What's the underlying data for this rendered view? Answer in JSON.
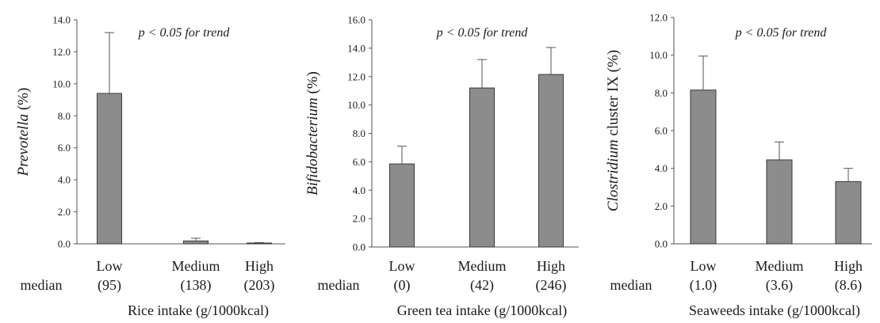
{
  "chart_data": [
    {
      "type": "bar",
      "categories": [
        "Low",
        "Medium",
        "High"
      ],
      "medians": [
        "(95)",
        "(138)",
        "(203)"
      ],
      "median_label": "median",
      "values": [
        9.4,
        0.18,
        0.05
      ],
      "error_upper": [
        13.2,
        0.35,
        0.08
      ],
      "ylabel_italic": "Prevotella",
      "ylabel_rest": " (%)",
      "xlabel": "Rice intake (g/1000kcal)",
      "annotation": "p < 0.05 for trend",
      "ylim": [
        0,
        14
      ],
      "yticks": [
        "0.0",
        "2.0",
        "4.0",
        "6.0",
        "8.0",
        "10.0",
        "12.0",
        "14.0"
      ],
      "grid": false,
      "bar_color": "#8c8c8c"
    },
    {
      "type": "bar",
      "categories": [
        "Low",
        "Medium",
        "High"
      ],
      "medians": [
        "(0)",
        "(42)",
        "(246)"
      ],
      "median_label": "median",
      "values": [
        5.85,
        11.2,
        12.15
      ],
      "error_upper": [
        7.1,
        13.2,
        14.05
      ],
      "ylabel_italic": "Bifidobacterium",
      "ylabel_rest": " (%)",
      "xlabel": "Green tea intake (g/1000kcal)",
      "annotation": "p < 0.05 for trend",
      "ylim": [
        0,
        16
      ],
      "yticks": [
        "0.0",
        "2.0",
        "4.0",
        "6.0",
        "8.0",
        "10.0",
        "12.0",
        "14.0",
        "16.0"
      ],
      "grid": false,
      "bar_color": "#8c8c8c"
    },
    {
      "type": "bar",
      "categories": [
        "Low",
        "Medium",
        "High"
      ],
      "medians": [
        "(1.0)",
        "(3.6)",
        "(8.6)"
      ],
      "median_label": "median",
      "values": [
        8.15,
        4.45,
        3.3
      ],
      "error_upper": [
        9.95,
        5.4,
        4.0
      ],
      "ylabel_italic": "Clostridium",
      "ylabel_rest": " cluster IX (%)",
      "xlabel": "Seaweeds intake (g/1000kcal)",
      "annotation": "p < 0.05 for trend",
      "ylim": [
        0,
        12
      ],
      "yticks": [
        "0.0",
        "2.0",
        "4.0",
        "6.0",
        "8.0",
        "10.0",
        "12.0"
      ],
      "grid": false,
      "bar_color": "#8c8c8c"
    }
  ]
}
